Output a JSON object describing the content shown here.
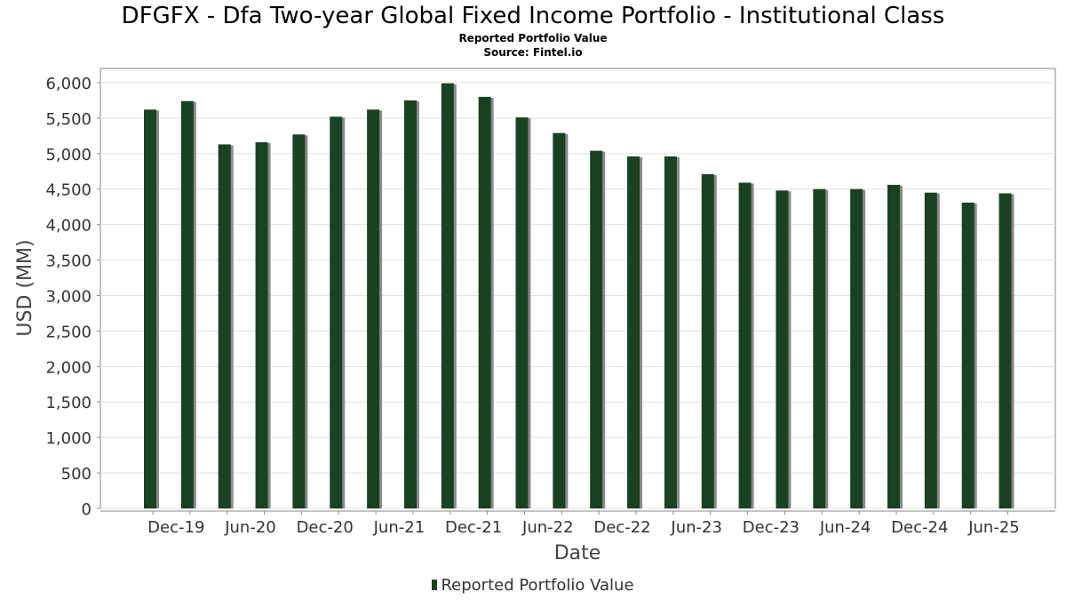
{
  "chart_data": {
    "type": "bar",
    "title": "DFGFX - Dfa Two-year Global Fixed Income Portfolio - Institutional Class",
    "subtitle_lines": [
      "Reported Portfolio Value",
      "Source: Fintel.io"
    ],
    "xlabel": "Date",
    "ylabel": "USD (MM)",
    "ylim": [
      0,
      6200
    ],
    "yticks": [
      0,
      500,
      1000,
      1500,
      2000,
      2500,
      3000,
      3500,
      4000,
      4500,
      5000,
      5500,
      6000
    ],
    "ytick_labels": [
      "0",
      "500",
      "1,000",
      "1,500",
      "2,000",
      "2,500",
      "3,000",
      "3,500",
      "4,000",
      "4,500",
      "5,000",
      "5,500",
      "6,000"
    ],
    "xtick_labels": [
      "Dec-19",
      "Jun-20",
      "Dec-20",
      "Jun-21",
      "Dec-21",
      "Jun-22",
      "Dec-22",
      "Jun-23",
      "Dec-23",
      "Jun-24",
      "Dec-24",
      "Jun-25"
    ],
    "grid": true,
    "legend_position": "bottom-center",
    "series": [
      {
        "name": "Reported Portfolio Value",
        "color": "#1a4222",
        "values": [
          5620,
          5740,
          5130,
          5160,
          5270,
          5520,
          5620,
          5750,
          5990,
          5800,
          5510,
          5290,
          5040,
          4960,
          4960,
          4710,
          4590,
          4480,
          4500,
          4500,
          4560,
          4450,
          4310,
          4440
        ]
      }
    ]
  }
}
